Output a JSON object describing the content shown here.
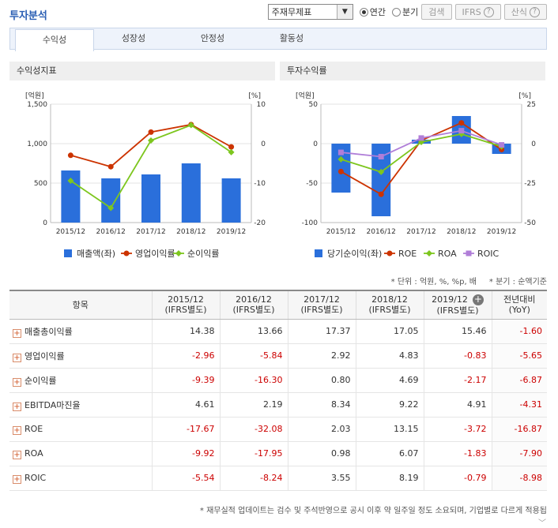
{
  "header": {
    "title": "투자분석"
  },
  "controls": {
    "select_value": "주재무제표",
    "radio_annual": "연간",
    "radio_quarter": "분기",
    "search": "검색",
    "ifrs": "IFRS",
    "formula": "산식"
  },
  "tabs": [
    {
      "label": "수익성",
      "active": true
    },
    {
      "label": "성장성"
    },
    {
      "label": "안정성"
    },
    {
      "label": "활동성"
    }
  ],
  "colors": {
    "bar": "#2a6fdb",
    "red": "#cc3300",
    "green": "#7dc61e",
    "purple": "#b07ed8"
  },
  "chart_data": [
    {
      "type": "bar+line",
      "title": "수익성지표",
      "left_unit": "[억원]",
      "right_unit": "[%]",
      "categories": [
        "2015/12",
        "2016/12",
        "2017/12",
        "2018/12",
        "2019/12"
      ],
      "left_ticks": [
        "1,500",
        "1,000",
        "500",
        "0"
      ],
      "right_ticks": [
        "10",
        "0",
        "-10",
        "-20"
      ],
      "ylim_left": [
        0,
        1500
      ],
      "ylim_right": [
        -20,
        10
      ],
      "bar_series": {
        "name": "매출액(좌)",
        "values": [
          660,
          560,
          610,
          750,
          560
        ]
      },
      "line_series": [
        {
          "name": "영업이익률",
          "values": [
            -2.96,
            -5.84,
            2.92,
            4.83,
            -0.83
          ],
          "color": "#cc3300"
        },
        {
          "name": "순이익률",
          "values": [
            -9.39,
            -16.3,
            0.8,
            4.69,
            -2.17
          ],
          "color": "#7dc61e"
        }
      ]
    },
    {
      "type": "bar+line",
      "title": "투자수익률",
      "left_unit": "[억원]",
      "right_unit": "[%]",
      "categories": [
        "2015/12",
        "2016/12",
        "2017/12",
        "2018/12",
        "2019/12"
      ],
      "left_ticks": [
        "50",
        "0",
        "-50",
        "-100"
      ],
      "right_ticks": [
        "25",
        "0",
        "-25",
        "-50"
      ],
      "ylim_left": [
        -100,
        50
      ],
      "ylim_right": [
        -50,
        25
      ],
      "bar_series": {
        "name": "당기순이익(좌)",
        "values": [
          -62,
          -92,
          5,
          35,
          -13
        ]
      },
      "line_series": [
        {
          "name": "ROE",
          "values": [
            -17.67,
            -32.08,
            2.03,
            13.15,
            -3.72
          ],
          "color": "#cc3300"
        },
        {
          "name": "ROA",
          "values": [
            -9.92,
            -17.95,
            0.98,
            6.07,
            -1.83
          ],
          "color": "#7dc61e"
        },
        {
          "name": "ROIC",
          "values": [
            -5.54,
            -8.24,
            3.55,
            8.19,
            -0.79
          ],
          "color": "#b07ed8"
        }
      ]
    }
  ],
  "unit_note": "* 단위 : 억원, %, %p, 배     * 분기 : 순액기준",
  "table": {
    "item_header": "항목",
    "columns": [
      {
        "year": "2015/12",
        "sub": "(IFRS별도)"
      },
      {
        "year": "2016/12",
        "sub": "(IFRS별도)"
      },
      {
        "year": "2017/12",
        "sub": "(IFRS별도)"
      },
      {
        "year": "2018/12",
        "sub": "(IFRS별도)"
      },
      {
        "year": "2019/12",
        "sub": "(IFRS별도)"
      }
    ],
    "yoy_header": "전년대비",
    "yoy_sub": "(YoY)",
    "rows": [
      {
        "name": "매출총이익률",
        "values": [
          "14.38",
          "13.66",
          "17.37",
          "17.05",
          "15.46"
        ],
        "yoy": "-1.60"
      },
      {
        "name": "영업이익률",
        "values": [
          "-2.96",
          "-5.84",
          "2.92",
          "4.83",
          "-0.83"
        ],
        "yoy": "-5.65"
      },
      {
        "name": "순이익률",
        "values": [
          "-9.39",
          "-16.30",
          "0.80",
          "4.69",
          "-2.17"
        ],
        "yoy": "-6.87"
      },
      {
        "name": "EBITDA마진율",
        "values": [
          "4.61",
          "2.19",
          "8.34",
          "9.22",
          "4.91"
        ],
        "yoy": "-4.31"
      },
      {
        "name": "ROE",
        "values": [
          "-17.67",
          "-32.08",
          "2.03",
          "13.15",
          "-3.72"
        ],
        "yoy": "-16.87"
      },
      {
        "name": "ROA",
        "values": [
          "-9.92",
          "-17.95",
          "0.98",
          "6.07",
          "-1.83"
        ],
        "yoy": "-7.90"
      },
      {
        "name": "ROIC",
        "values": [
          "-5.54",
          "-8.24",
          "3.55",
          "8.19",
          "-0.79"
        ],
        "yoy": "-8.98"
      }
    ]
  },
  "footnote": "* 재무실적 업데이트는 검수 및 주석반영으로 공시 이후 약 일주일 정도 소요되며, 기업별로 다르게 적용됩"
}
